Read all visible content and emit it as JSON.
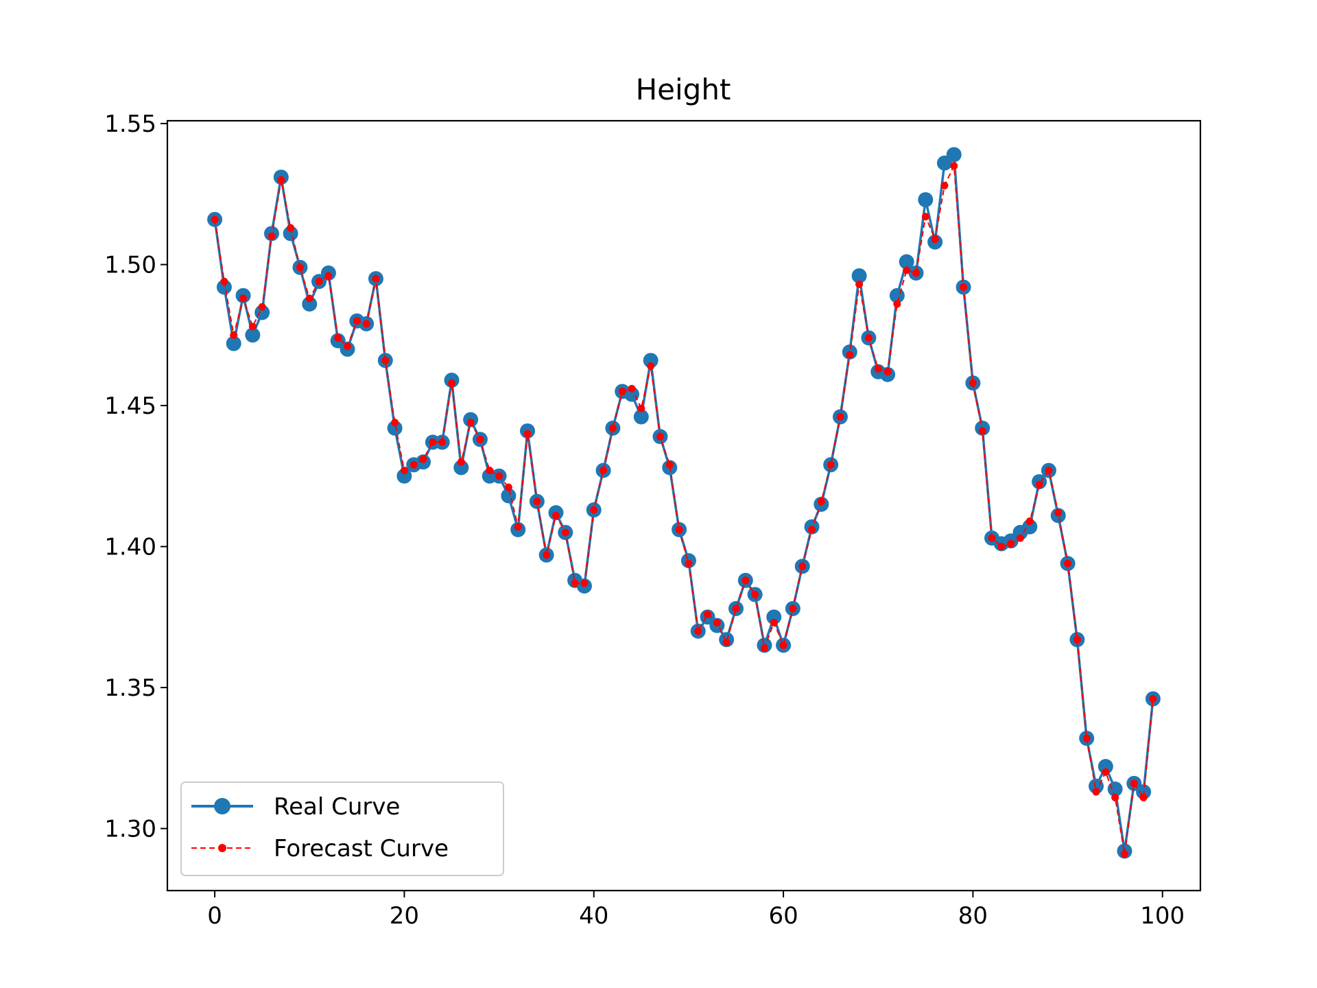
{
  "chart_data": {
    "type": "line",
    "title": "Height",
    "xlabel": "",
    "ylabel": "",
    "xlim": [
      -5,
      104
    ],
    "ylim": [
      1.278,
      1.551
    ],
    "xticks": [
      0,
      20,
      40,
      60,
      80,
      100
    ],
    "yticks": [
      1.3,
      1.35,
      1.4,
      1.45,
      1.5,
      1.55
    ],
    "ytick_labels": [
      "1.30",
      "1.35",
      "1.40",
      "1.45",
      "1.50",
      "1.55"
    ],
    "xtick_labels": [
      "0",
      "20",
      "40",
      "60",
      "80",
      "100"
    ],
    "grid": false,
    "legend_position": "lower-left",
    "x": [
      0,
      1,
      2,
      3,
      4,
      5,
      6,
      7,
      8,
      9,
      10,
      11,
      12,
      13,
      14,
      15,
      16,
      17,
      18,
      19,
      20,
      21,
      22,
      23,
      24,
      25,
      26,
      27,
      28,
      29,
      30,
      31,
      32,
      33,
      34,
      35,
      36,
      37,
      38,
      39,
      40,
      41,
      42,
      43,
      44,
      45,
      46,
      47,
      48,
      49,
      50,
      51,
      52,
      53,
      54,
      55,
      56,
      57,
      58,
      59,
      60,
      61,
      62,
      63,
      64,
      65,
      66,
      67,
      68,
      69,
      70,
      71,
      72,
      73,
      74,
      75,
      76,
      77,
      78,
      79,
      80,
      81,
      82,
      83,
      84,
      85,
      86,
      87,
      88,
      89,
      90,
      91,
      92,
      93,
      94,
      95,
      96,
      97,
      98,
      99
    ],
    "series": [
      {
        "name": "Real Curve",
        "color": "#1f77b4",
        "values": [
          1.516,
          1.492,
          1.472,
          1.489,
          1.475,
          1.483,
          1.511,
          1.531,
          1.511,
          1.499,
          1.486,
          1.494,
          1.497,
          1.473,
          1.47,
          1.48,
          1.479,
          1.495,
          1.466,
          1.442,
          1.425,
          1.429,
          1.43,
          1.437,
          1.437,
          1.459,
          1.428,
          1.445,
          1.438,
          1.425,
          1.425,
          1.418,
          1.406,
          1.441,
          1.416,
          1.397,
          1.412,
          1.405,
          1.388,
          1.386,
          1.413,
          1.427,
          1.442,
          1.455,
          1.454,
          1.446,
          1.466,
          1.439,
          1.428,
          1.406,
          1.395,
          1.37,
          1.375,
          1.372,
          1.367,
          1.378,
          1.388,
          1.383,
          1.365,
          1.375,
          1.365,
          1.378,
          1.393,
          1.407,
          1.415,
          1.429,
          1.446,
          1.469,
          1.496,
          1.474,
          1.462,
          1.461,
          1.489,
          1.501,
          1.497,
          1.523,
          1.508,
          1.536,
          1.539,
          1.492,
          1.458,
          1.442,
          1.403,
          1.401,
          1.402,
          1.405,
          1.407,
          1.423,
          1.427,
          1.411,
          1.394,
          1.367,
          1.332,
          1.315,
          1.322,
          1.314,
          1.292,
          1.316,
          1.313,
          1.346
        ]
      },
      {
        "name": "Forecast Curve",
        "color": "#ff0000",
        "values": [
          1.516,
          1.494,
          1.475,
          1.488,
          1.478,
          1.485,
          1.51,
          1.53,
          1.513,
          1.499,
          1.488,
          1.494,
          1.496,
          1.474,
          1.471,
          1.48,
          1.479,
          1.495,
          1.466,
          1.444,
          1.427,
          1.429,
          1.431,
          1.437,
          1.437,
          1.458,
          1.43,
          1.444,
          1.438,
          1.427,
          1.425,
          1.421,
          1.407,
          1.44,
          1.416,
          1.397,
          1.411,
          1.405,
          1.387,
          1.387,
          1.413,
          1.427,
          1.442,
          1.455,
          1.456,
          1.449,
          1.464,
          1.439,
          1.429,
          1.406,
          1.394,
          1.37,
          1.376,
          1.373,
          1.366,
          1.378,
          1.388,
          1.383,
          1.364,
          1.373,
          1.365,
          1.378,
          1.393,
          1.406,
          1.416,
          1.429,
          1.446,
          1.468,
          1.493,
          1.474,
          1.463,
          1.462,
          1.486,
          1.498,
          1.497,
          1.517,
          1.509,
          1.528,
          1.535,
          1.492,
          1.458,
          1.441,
          1.403,
          1.4,
          1.401,
          1.403,
          1.409,
          1.422,
          1.427,
          1.412,
          1.394,
          1.367,
          1.332,
          1.313,
          1.32,
          1.311,
          1.291,
          1.316,
          1.311,
          1.346
        ]
      }
    ]
  }
}
